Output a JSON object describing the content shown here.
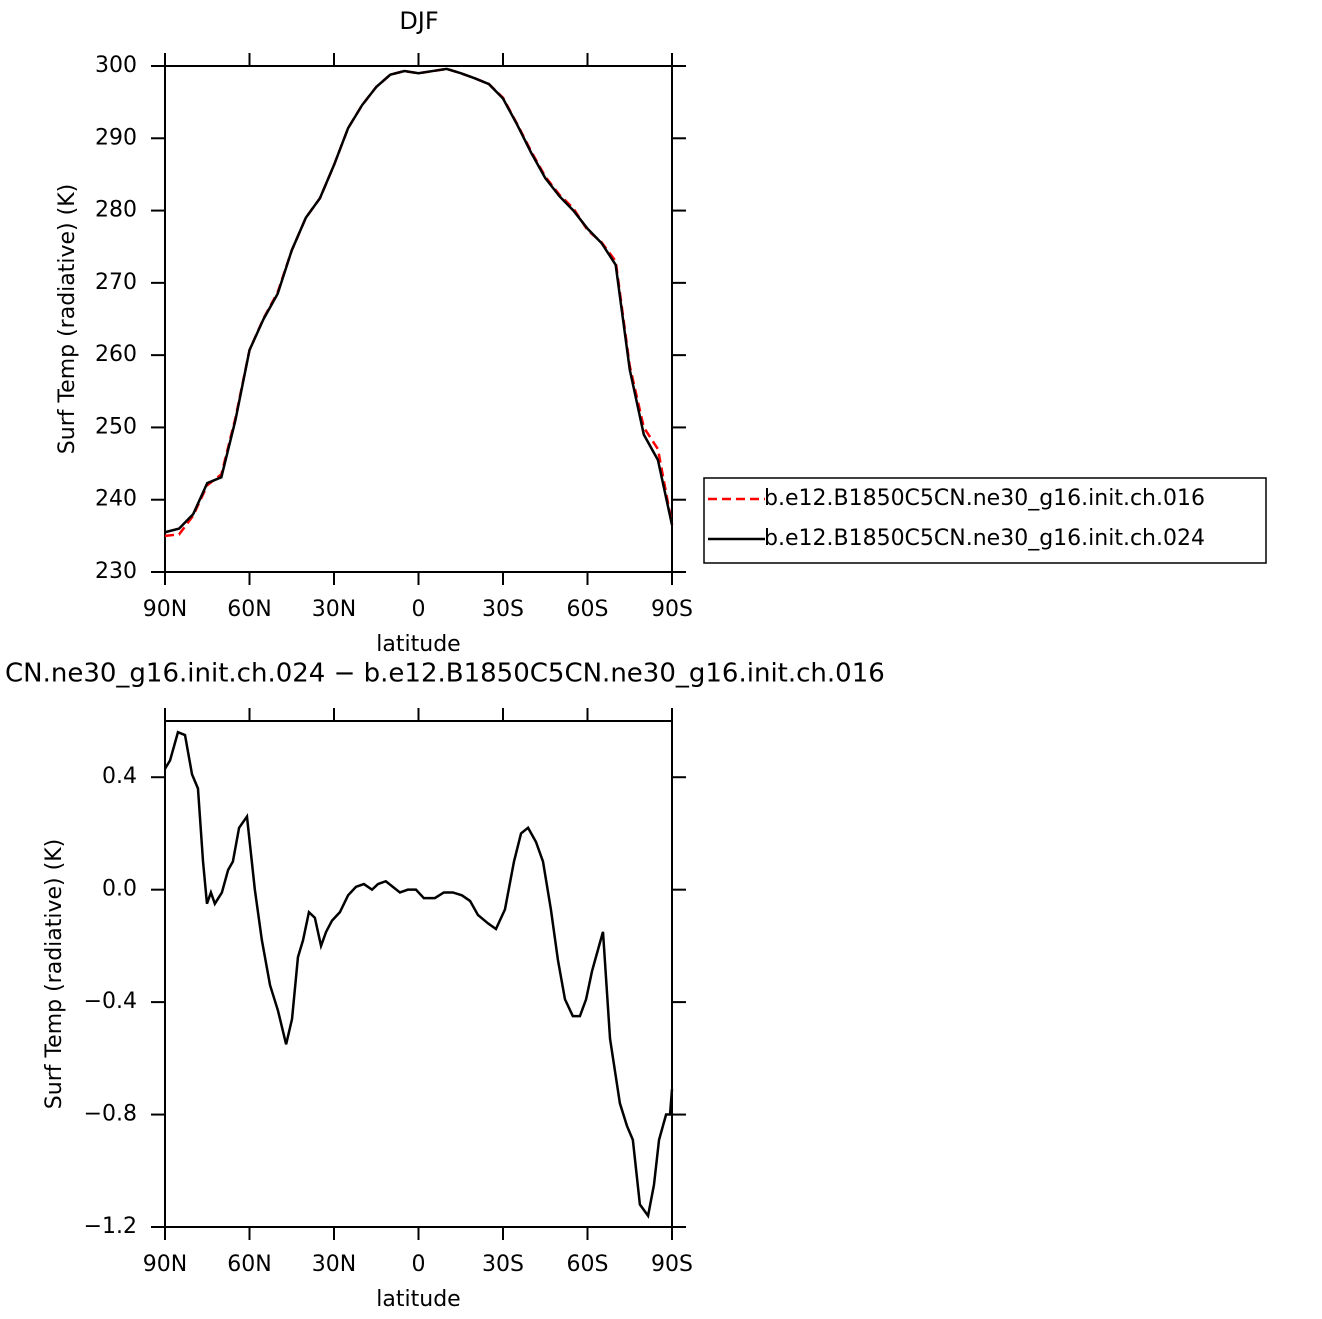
{
  "chart_data": [
    {
      "type": "line",
      "title": "DJF",
      "xlabel": "latitude",
      "ylabel": "Surf Temp (radiative) (K)",
      "x": [
        90,
        85,
        80,
        75,
        70,
        65,
        60,
        55,
        50,
        45,
        40,
        35,
        30,
        25,
        20,
        15,
        10,
        5,
        0,
        -5,
        -10,
        -15,
        -20,
        -25,
        -30,
        -35,
        -40,
        -45,
        -50,
        -55,
        -60,
        -65,
        -70,
        -75,
        -80,
        -85,
        -90
      ],
      "xlim": [
        90,
        -90
      ],
      "xticks": [
        {
          "value": 90,
          "label": "90N"
        },
        {
          "value": 60,
          "label": "60N"
        },
        {
          "value": 30,
          "label": "30N"
        },
        0,
        {
          "value": -30,
          "label": "30S"
        },
        {
          "value": -60,
          "label": "60S"
        },
        {
          "value": -90,
          "label": "90S"
        }
      ],
      "ylim": [
        230,
        300
      ],
      "yticks": [
        230,
        240,
        250,
        260,
        270,
        280,
        290,
        300
      ],
      "legend": "right",
      "series": [
        {
          "name": "b.e12.B1850C5CN.ne30_g16.init.ch.016",
          "color": "#ff0000",
          "line_style": "dashed",
          "values": [
            235,
            235.2,
            237.8,
            242,
            243.5,
            251.3,
            260.7,
            265.1,
            268.7,
            274.5,
            279,
            281.7,
            286.3,
            291.4,
            294.6,
            297.1,
            298.8,
            299.3,
            299,
            299.3,
            299.6,
            299,
            298.3,
            297.5,
            295.6,
            292,
            288.2,
            284.7,
            282.2,
            280.3,
            277.3,
            275.6,
            273,
            258.5,
            250,
            247,
            236.6
          ]
        },
        {
          "name": "b.e12.B1850C5CN.ne30_g16.init.ch.024",
          "color": "#000000",
          "line_style": "solid",
          "values": [
            235.5,
            236,
            238,
            242.3,
            243.1,
            251,
            260.7,
            265,
            268.5,
            274.5,
            279,
            281.7,
            286.3,
            291.4,
            294.6,
            297.1,
            298.8,
            299.3,
            299,
            299.3,
            299.6,
            299,
            298.3,
            297.5,
            295.5,
            291.9,
            288,
            284.5,
            282,
            280,
            277.5,
            275.5,
            272.5,
            258,
            249,
            245.5,
            236.5
          ]
        }
      ]
    },
    {
      "type": "line",
      "title": "CN.ne30_g16.init.ch.024 − b.e12.B1850C5CN.ne30_g16.init.ch.016",
      "xlabel": "latitude",
      "ylabel": "Surf Temp (radiative) (K)",
      "x": [
        90,
        88.2,
        85.4,
        82.9,
        80.4,
        78.3,
        76.5,
        75.1,
        73.7,
        72.3,
        69.8,
        67.6,
        65.9,
        63.7,
        60.9,
        58.1,
        55.6,
        52.7,
        49.9,
        47,
        44.9,
        42.8,
        41,
        38.9,
        36.8,
        34.6,
        32.8,
        30.7,
        27.9,
        25,
        22.2,
        19.4,
        16.5,
        14.4,
        11.6,
        9.1,
        6.6,
        3.8,
        0.9,
        -1.9,
        -5.8,
        -9,
        -12.2,
        -15.4,
        -18.3,
        -21.1,
        -24.7,
        -27.5,
        -30.7,
        -33.9,
        -36.4,
        -38.9,
        -41.7,
        -44.2,
        -47,
        -49.5,
        -52,
        -54.8,
        -57.3,
        -59.5,
        -61.6,
        -64.1,
        -65.5,
        -68,
        -71.5,
        -74,
        -76.1,
        -78.6,
        -81.5,
        -83.6,
        -85.4,
        -87.9,
        -89.3,
        -90
      ],
      "xlim": [
        90,
        -90
      ],
      "xticks": [
        {
          "value": 90,
          "label": "90N"
        },
        {
          "value": 60,
          "label": "60N"
        },
        {
          "value": 30,
          "label": "30N"
        },
        0,
        {
          "value": -30,
          "label": "30S"
        },
        {
          "value": -60,
          "label": "60S"
        },
        {
          "value": -90,
          "label": "90S"
        }
      ],
      "ylim": [
        -1.2,
        0.6
      ],
      "yticks": [
        {
          "value": -1.2,
          "label": "−1.2"
        },
        {
          "value": -0.8,
          "label": "−0.8"
        },
        {
          "value": -0.4,
          "label": "−0.4"
        },
        {
          "value": 0,
          "label": "0.0"
        },
        0.4
      ],
      "series": [
        {
          "color": "#000000",
          "line_style": "solid",
          "values": [
            0.43,
            0.46,
            0.56,
            0.55,
            0.41,
            0.36,
            0.1,
            -0.05,
            -0.01,
            -0.05,
            -0.01,
            0.07,
            0.1,
            0.22,
            0.26,
            0,
            -0.18,
            -0.34,
            -0.43,
            -0.55,
            -0.46,
            -0.24,
            -0.18,
            -0.08,
            -0.1,
            -0.2,
            -0.15,
            -0.11,
            -0.08,
            -0.02,
            0.01,
            0.02,
            0,
            0.02,
            0.03,
            0.01,
            -0.01,
            0,
            0,
            -0.03,
            -0.03,
            -0.01,
            -0.01,
            -0.02,
            -0.04,
            -0.09,
            -0.12,
            -0.14,
            -0.07,
            0.1,
            0.2,
            0.22,
            0.17,
            0.1,
            -0.07,
            -0.25,
            -0.39,
            -0.45,
            -0.45,
            -0.39,
            -0.29,
            -0.2,
            -0.15,
            -0.53,
            -0.76,
            -0.84,
            -0.89,
            -1.12,
            -1.16,
            -1.05,
            -0.89,
            -0.8,
            -0.8,
            -0.71
          ]
        }
      ]
    }
  ]
}
